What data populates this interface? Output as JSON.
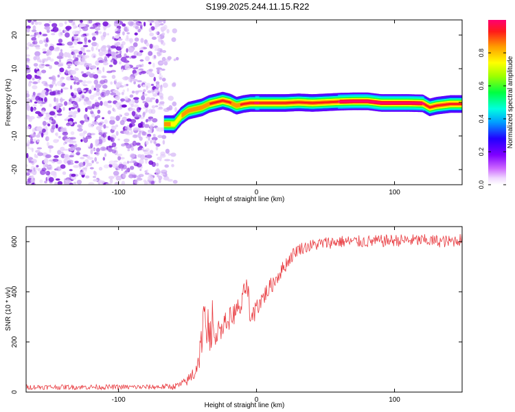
{
  "title": "S199.2025.244.11.15.R22",
  "colors": {
    "noise": "#8a2be2",
    "snr_line": "#e8383d",
    "frame": "#000000"
  },
  "chart_data": [
    {
      "type": "heatmap",
      "title": "S199.2025.244.11.15.R22",
      "xlabel": "Height of straight line (km)",
      "ylabel": "Frequency (Hz)",
      "xlim": [
        -167,
        149
      ],
      "ylim": [
        -24.5,
        24.5
      ],
      "xticks": [
        -100,
        0,
        100
      ],
      "xtick_labels": [
        "-100",
        "0",
        "100"
      ],
      "yticks": [
        -20,
        -10,
        0,
        10,
        20
      ],
      "ytick_labels": [
        "-20",
        "-10",
        "0",
        "10",
        "20"
      ],
      "noise_region_x": [
        -167,
        -67
      ],
      "colorbar": {
        "label": "Normalized spectral amplitude",
        "range": [
          0.0,
          1.0
        ],
        "ticks": [
          0.0,
          0.2,
          0.4,
          0.6,
          0.8
        ],
        "tick_labels": [
          "0.0",
          "0.2",
          "0.4",
          "0.6",
          "0.8"
        ]
      },
      "ridge": {
        "x": [
          -67,
          -60,
          -55,
          -50,
          -45,
          -40,
          -35,
          -30,
          -25,
          -20,
          -15,
          -10,
          -5,
          0,
          10,
          20,
          30,
          40,
          50,
          60,
          70,
          80,
          90,
          100,
          110,
          120,
          125,
          130,
          140,
          149
        ],
        "freq": [
          -6.5,
          -6.5,
          -4,
          -2.5,
          -2,
          -1.5,
          -0.5,
          0,
          0.5,
          0,
          -1,
          -0.5,
          -0.2,
          -0.2,
          -0.2,
          -0.2,
          0,
          -0.2,
          0,
          0.2,
          0.3,
          0.3,
          -0.2,
          -0.2,
          -0.2,
          -0.3,
          -1.5,
          -1,
          -0.5,
          -0.5
        ],
        "amp": [
          0.85,
          0.7,
          0.75,
          0.8,
          0.8,
          0.75,
          0.85,
          0.9,
          0.92,
          0.88,
          0.8,
          0.9,
          0.92,
          0.95,
          0.9,
          0.9,
          0.88,
          0.9,
          0.88,
          0.95,
          0.98,
          0.98,
          0.95,
          0.97,
          0.96,
          0.95,
          0.92,
          0.9,
          0.9,
          0.9
        ]
      }
    },
    {
      "type": "line",
      "xlabel": "Height of straight line (km)",
      "ylabel": "SNR (10 * v/v)",
      "xlim": [
        -167,
        149
      ],
      "ylim": [
        0,
        660
      ],
      "xticks": [
        -100,
        0,
        100
      ],
      "xtick_labels": [
        "-100",
        "0",
        "100"
      ],
      "yticks": [
        0,
        200,
        400,
        600
      ],
      "ytick_labels": [
        "0",
        "200",
        "400",
        "600"
      ],
      "series": [
        {
          "name": "SNR",
          "x": [
            -167,
            -120,
            -80,
            -60,
            -55,
            -50,
            -45,
            -42,
            -40,
            -38,
            -36,
            -34,
            -32,
            -30,
            -25,
            -20,
            -15,
            -10,
            -8,
            -6,
            -4,
            -2,
            0,
            10,
            20,
            25,
            30,
            40,
            50,
            60,
            80,
            100,
            120,
            140,
            149
          ],
          "values": [
            20,
            20,
            20,
            22,
            30,
            45,
            80,
            130,
            200,
            300,
            250,
            220,
            240,
            230,
            260,
            290,
            320,
            350,
            440,
            380,
            260,
            300,
            340,
            420,
            500,
            540,
            570,
            585,
            595,
            600,
            600,
            605,
            605,
            600,
            610
          ],
          "noise": [
            10,
            10,
            10,
            12,
            15,
            20,
            40,
            60,
            70,
            80,
            70,
            60,
            55,
            50,
            45,
            45,
            45,
            50,
            60,
            55,
            50,
            45,
            40,
            35,
            30,
            28,
            25,
            25,
            25,
            25,
            25,
            25,
            25,
            25,
            25
          ]
        }
      ]
    }
  ]
}
